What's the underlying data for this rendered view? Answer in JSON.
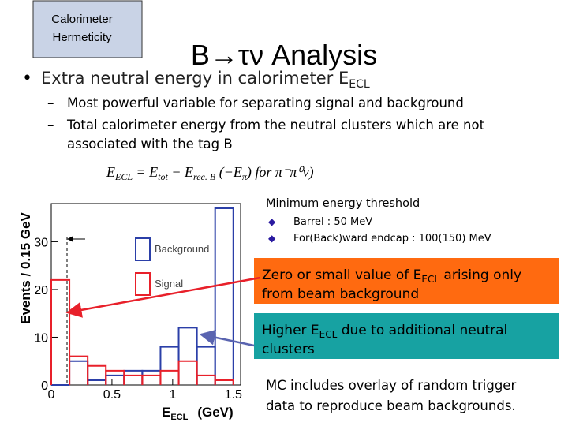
{
  "label_box": {
    "lines": [
      "Calorimeter",
      "Hermeticity"
    ]
  },
  "title": "B→τν Analysis",
  "bullet": {
    "text": "Extra neutral energy in calorimeter E",
    "sub": "ECL"
  },
  "sub_bullets": [
    {
      "lines": [
        "Most powerful variable for separating signal and background"
      ]
    },
    {
      "lines": [
        "Total calorimeter energy from the neutral clusters which are not",
        "associated with the tag B"
      ]
    }
  ],
  "formula": {
    "lhs": "E",
    "lhs_sub": "ECL",
    "eq": " = E",
    "tot_sub": "tot",
    "minus": " − E",
    "rec_sub": "rec. B",
    "extra": "   (−E",
    "pi_sub": "π",
    "for": ")   for π⁻π⁰ν)"
  },
  "threshold": {
    "title": "Minimum energy threshold",
    "items": [
      "Barrel : 50 MeV",
      "For(Back)ward endcap : 100(150) MeV"
    ]
  },
  "boxes": [
    {
      "pre": "Zero or small value of E",
      "sub": "ECL",
      "post": " arising only",
      "line2": "from beam background"
    },
    {
      "pre": "Higher E",
      "sub": "ECL",
      "post": " due to additional neutral",
      "line2": "clusters"
    }
  ],
  "note": {
    "lines": [
      "MC includes overlay of random trigger",
      "data to reproduce beam backgrounds."
    ]
  },
  "chart_data": {
    "type": "histogram",
    "y_label": "Events / 0.15 GeV",
    "x_label": {
      "main": "E",
      "sub": "ECL",
      "unit": "(GeV)"
    },
    "bins": [
      0,
      0.15,
      0.3,
      0.45,
      0.6,
      0.75,
      0.9,
      1.05,
      1.2,
      1.35,
      1.5
    ],
    "series": [
      {
        "name": "Background",
        "color": "#2b3fa8",
        "values": [
          0,
          5,
          1,
          2,
          3,
          3,
          8,
          12,
          8,
          37
        ]
      },
      {
        "name": "Signal",
        "color": "#e8202a",
        "values": [
          22,
          6,
          4,
          3,
          2,
          2,
          3,
          5,
          2,
          1
        ]
      }
    ],
    "xlim": [
      0,
      1.56
    ],
    "ylim": [
      0,
      38
    ],
    "xticks": [
      0,
      0.5,
      1,
      1.5
    ],
    "yticks": [
      0,
      10,
      20,
      30
    ]
  }
}
